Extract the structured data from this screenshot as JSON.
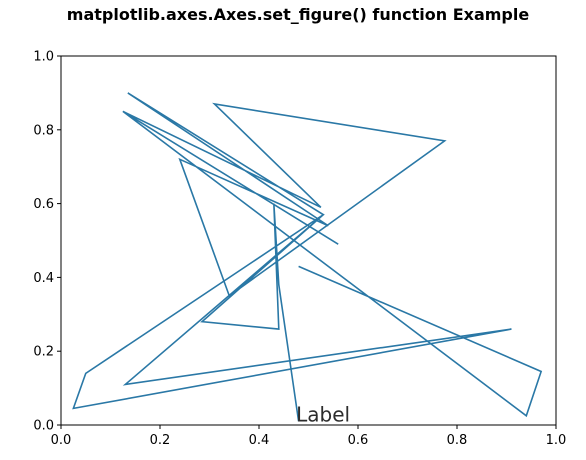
{
  "chart_data": {
    "type": "line",
    "title": "matplotlib.axes.Axes.set_figure() function Example",
    "xlabel": "",
    "ylabel": "",
    "xlim": [
      0,
      1
    ],
    "ylim": [
      0,
      1
    ],
    "x_ticks": [
      "0.0",
      "0.2",
      "0.4",
      "0.6",
      "0.8",
      "1.0"
    ],
    "y_ticks": [
      "0.0",
      "0.2",
      "0.4",
      "0.6",
      "0.8",
      "1.0"
    ],
    "grid": false,
    "series": [
      {
        "color": "#2a78a6",
        "x": [
          0.48,
          0.44,
          0.43,
          0.44,
          0.285,
          0.53,
          0.13,
          0.91,
          0.025,
          0.05,
          0.53,
          0.135,
          0.54,
          0.24,
          0.34,
          0.775,
          0.31,
          0.525,
          0.125,
          0.56,
          0.125,
          0.94,
          0.97,
          0.48
        ],
        "y": [
          0.01,
          0.38,
          0.6,
          0.26,
          0.28,
          0.57,
          0.11,
          0.26,
          0.045,
          0.14,
          0.57,
          0.9,
          0.54,
          0.72,
          0.35,
          0.77,
          0.87,
          0.59,
          0.85,
          0.49,
          0.85,
          0.025,
          0.145,
          0.43
        ]
      }
    ],
    "annotation": {
      "text": "Label",
      "x": 0.475,
      "y": 0.01
    }
  }
}
